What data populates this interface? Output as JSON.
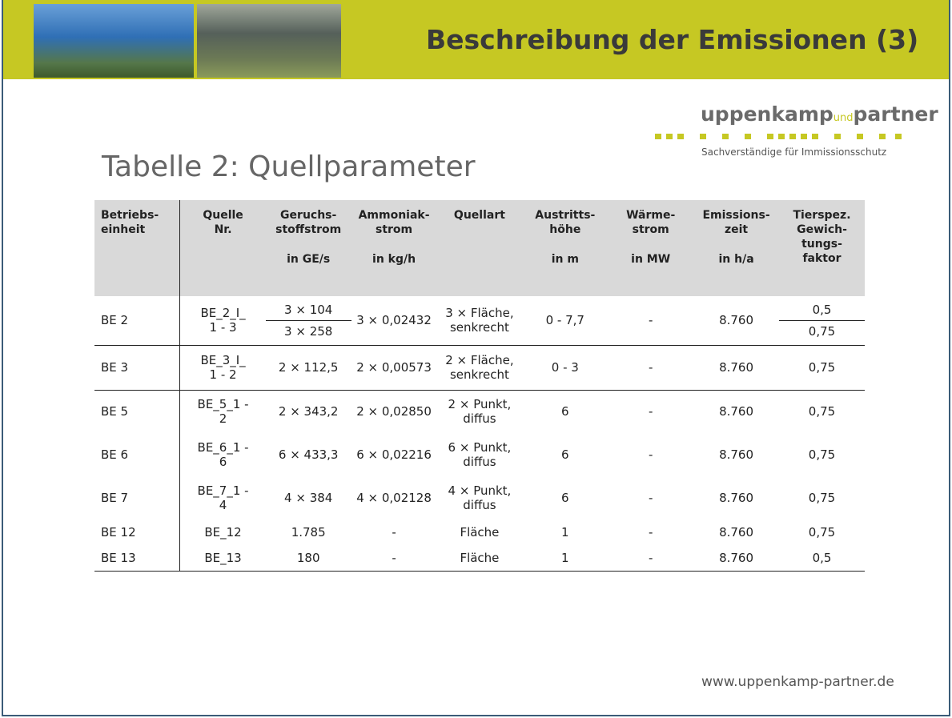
{
  "header": {
    "title": "Beschreibung der Emissionen (3)"
  },
  "logo": {
    "name": "uppenkamp",
    "connector": "und",
    "name2": "partner",
    "tagline": "Sachverständige für Immissionsschutz"
  },
  "table": {
    "title": "Tabelle 2: Quellparameter",
    "columns": [
      {
        "label": "Betriebs-\neinheit"
      },
      {
        "label": "Quelle\nNr."
      },
      {
        "label": "Geruchs-\nstoffstrom",
        "unit": "in GE/s"
      },
      {
        "label": "Ammoniak-\nstrom",
        "unit": "in kg/h"
      },
      {
        "label": "Quellart"
      },
      {
        "label": "Austritts-\nhöhe",
        "unit": "in m"
      },
      {
        "label": "Wärme-\nstrom",
        "unit": "in MW"
      },
      {
        "label": "Emissions-\nzeit",
        "unit": "in h/a"
      },
      {
        "label": "Tierspez.\nGewich-\ntungs-\nfaktor"
      }
    ],
    "rows": [
      [
        "BE 2",
        "BE_2_I_\n1 - 3",
        [
          "3 × 104",
          "3 × 258"
        ],
        "3 × 0,02432",
        "3 × Fläche,\nsenkrecht",
        "0 - 7,7",
        "-",
        "8.760",
        [
          "0,5",
          "0,75"
        ]
      ],
      [
        "BE 3",
        "BE_3_I_\n1 - 2",
        "2 × 112,5",
        "2 × 0,00573",
        "2 × Fläche,\nsenkrecht",
        "0 - 3",
        "-",
        "8.760",
        "0,75"
      ],
      [
        "BE 5",
        "BE_5_1 -\n2",
        "2 × 343,2",
        "2 × 0,02850",
        "2 × Punkt,\ndiffus",
        "6",
        "-",
        "8.760",
        "0,75"
      ],
      [
        "BE 6",
        "BE_6_1 -\n6",
        "6 × 433,3",
        "6 × 0,02216",
        "6 × Punkt,\ndiffus",
        "6",
        "-",
        "8.760",
        "0,75"
      ],
      [
        "BE 7",
        "BE_7_1 -\n4",
        "4 × 384",
        "4 × 0,02128",
        "4 × Punkt,\ndiffus",
        "6",
        "-",
        "8.760",
        "0,75"
      ],
      [
        "BE 12",
        "BE_12",
        "1.785",
        "-",
        "Fläche",
        "1",
        "-",
        "8.760",
        "0,75"
      ],
      [
        "BE 13",
        "BE_13",
        "180",
        "-",
        "Fläche",
        "1",
        "-",
        "8.760",
        "0,5"
      ]
    ]
  },
  "footer": {
    "url": "www.uppenkamp-partner.de"
  }
}
